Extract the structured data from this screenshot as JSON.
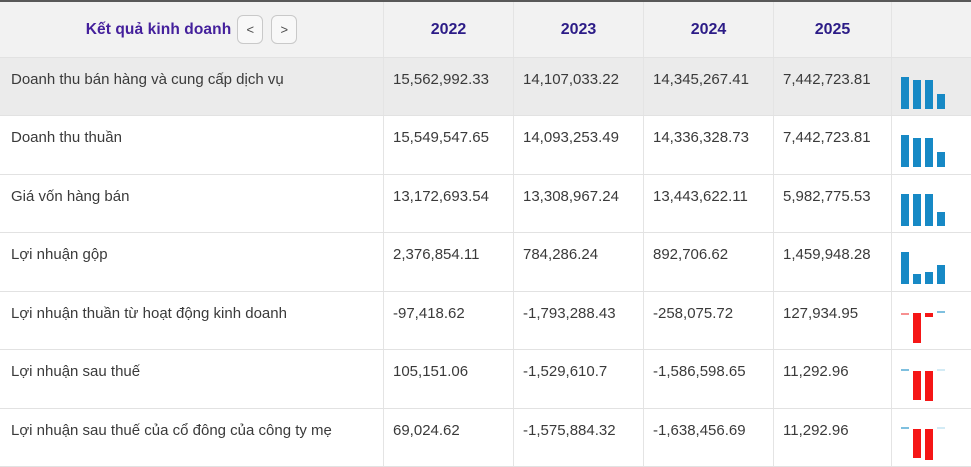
{
  "header": {
    "title": "Kết quả kinh doanh",
    "prev_button": "<",
    "next_button": ">",
    "years": [
      "2022",
      "2023",
      "2024",
      "2025"
    ]
  },
  "rows": [
    {
      "label": "Doanh thu bán hàng và cung cấp dịch vụ",
      "values": [
        "15,562,992.33",
        "14,107,033.22",
        "14,345,267.41",
        "7,442,723.81"
      ],
      "spark": [
        15562992.33,
        14107033.22,
        14345267.41,
        7442723.81
      ]
    },
    {
      "label": "Doanh thu thuần",
      "values": [
        "15,549,547.65",
        "14,093,253.49",
        "14,336,328.73",
        "7,442,723.81"
      ],
      "spark": [
        15549547.65,
        14093253.49,
        14336328.73,
        7442723.81
      ]
    },
    {
      "label": "Giá vốn hàng bán",
      "values": [
        "13,172,693.54",
        "13,308,967.24",
        "13,443,622.11",
        "5,982,775.53"
      ],
      "spark": [
        13172693.54,
        13308967.24,
        13443622.11,
        5982775.53
      ]
    },
    {
      "label": "Lợi nhuận gộp",
      "values": [
        "2,376,854.11",
        "784,286.24",
        "892,706.62",
        "1,459,948.28"
      ],
      "spark": [
        2376854.11,
        784286.24,
        892706.62,
        1459948.28
      ]
    },
    {
      "label": "Lợi nhuận thuần từ hoạt động kinh doanh",
      "values": [
        "-97,418.62",
        "-1,793,288.43",
        "-258,075.72",
        "127,934.95"
      ],
      "spark": [
        -97418.62,
        -1793288.43,
        -258075.72,
        127934.95
      ]
    },
    {
      "label": "Lợi nhuận sau thuế",
      "values": [
        "105,151.06",
        "-1,529,610.7",
        "-1,586,598.65",
        "11,292.96"
      ],
      "spark": [
        105151.06,
        -1529610.7,
        -1586598.65,
        11292.96
      ]
    },
    {
      "label": "Lợi nhuận sau thuế của cổ đông của công ty mẹ",
      "values": [
        "69,024.62",
        "-1,575,884.32",
        "-1,638,456.69",
        "11,292.96"
      ],
      "spark": [
        69024.62,
        -1575884.32,
        -1638456.69,
        11292.96
      ]
    }
  ],
  "colors": {
    "positive_bar": "#1789c5",
    "positive_bar_light": "#7fc0df",
    "positive_bar_faint": "#d3ebf5",
    "negative_bar": "#f51616",
    "negative_bar_light": "#f79090",
    "negative_bar_faint": "#fbd3d3",
    "title_text": "#44209c",
    "year_text": "#2c1c87",
    "header_bg": "#f2f2f2",
    "highlight_row_bg": "#ebebeb"
  }
}
